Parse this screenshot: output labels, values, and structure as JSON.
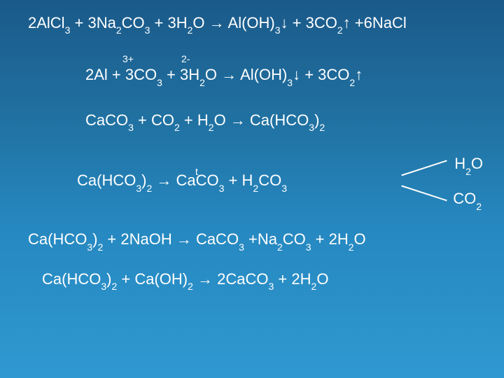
{
  "colors": {
    "bg_top": "#1a5a8a",
    "bg_bottom": "#3098d0",
    "text": "#ffffff"
  },
  "typography": {
    "main_fontsize": 22,
    "sub_fontsize": 14,
    "font_family": "Arial"
  },
  "eq1": {
    "c1": "2AlCl",
    "s1": "3",
    "plus1": " + ",
    "c2": "3Na",
    "s2": "2",
    "c2b": "CO",
    "s2b": "3",
    "plus2": " + ",
    "c3": "3H",
    "s3": "2",
    "c3b": "O",
    "arrow": " → ",
    "c4": "Al(OH)",
    "s4": "3",
    "down": "↓",
    "plus3": " + ",
    "c5": " 3CO",
    "s5": "2",
    "up": "↑",
    "plus4": " +",
    "c6": "6NaCl"
  },
  "charges": {
    "left": "3+",
    "right": "2-"
  },
  "eq2": {
    "c1": "2Al",
    "plus1": " + ",
    "c2": "3CO",
    "s2": "3",
    "plus2": " + ",
    "c3": "3H",
    "s3": "2",
    "c3b": "O",
    "arrow": " → ",
    "c4": "Al(OH)",
    "s4": "3",
    "down": "↓",
    "plus3": " + ",
    "c5": " 3CO",
    "s5": "2",
    "up": "↑"
  },
  "eq3": {
    "c1": "CaCO",
    "s1": "3",
    "plus1": " + ",
    "c2": "CO",
    "s2": "2",
    "plus2": " + ",
    "c3": "H",
    "s3": "2",
    "c3b": "O",
    "arrow": " → ",
    "c4": "Ca(HCO",
    "s4": "3",
    "c4b": ")",
    "s4c": "2"
  },
  "eq4": {
    "c1": "Ca(HCO",
    "s1": "3",
    "c1b": ")",
    "s1c": "2",
    "t": "t",
    "arrow": " → ",
    "c2": "CaCO",
    "s2": "3",
    "plus1": " + ",
    "c3": "H",
    "s3": "2",
    "c3b": "CO",
    "s3c": "3",
    "branch_top_a": "H",
    "branch_top_s": "2",
    "branch_top_b": "O",
    "branch_bot_a": "CO",
    "branch_bot_s": "2"
  },
  "eq5": {
    "c1": "Ca(HCO",
    "s1": "3",
    "c1b": ")",
    "s1c": "2",
    "plus1": " + ",
    "c2": "2NaOH",
    "arrow": " → ",
    "c3": "CaCO",
    "s3": "3",
    "plus2": " +",
    "c4": "Na",
    "s4": "2",
    "c4b": "CO",
    "s4c": "3",
    "plus3": " + ",
    "c5": "2H",
    "s5": "2",
    "c5b": "O"
  },
  "eq6": {
    "c1": "Ca(HCO",
    "s1": "3",
    "c1b": ")",
    "s1c": "2",
    "plus1": " + ",
    "c2": "Ca(OH)",
    "s2": "2",
    "arrow": " → ",
    "c3": "2CaCO",
    "s3": "3",
    "plus2": " + ",
    "c4": "2H",
    "s4": "2",
    "c4b": "O"
  }
}
